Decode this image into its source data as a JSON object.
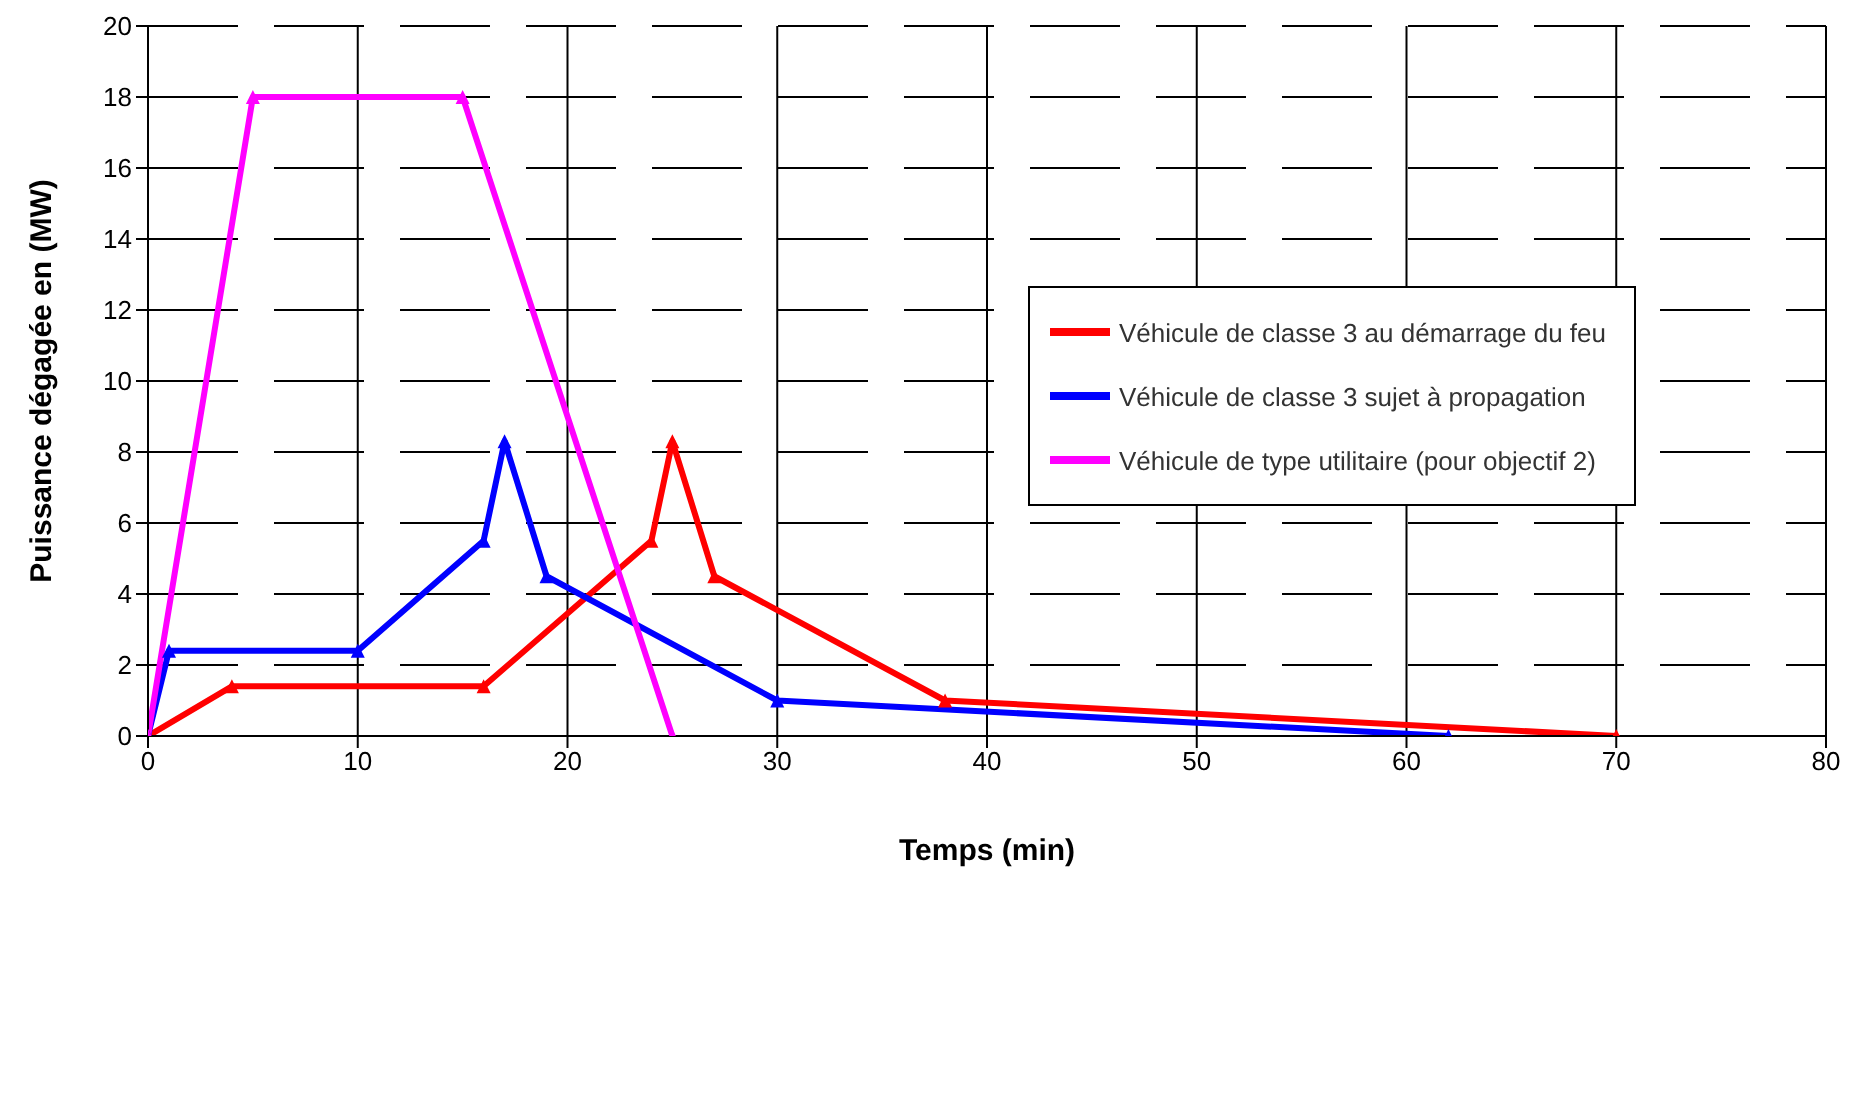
{
  "chart_data": {
    "type": "line",
    "xlabel": "Temps (min)",
    "ylabel": "Puissance dégagée en (MW)",
    "series": [
      {
        "name": "Véhicule de classe 3 au démarrage du feu",
        "color": "#ff0000",
        "x": [
          0,
          4,
          16,
          24,
          25,
          27,
          38,
          70
        ],
        "values": [
          0,
          1.4,
          1.4,
          5.5,
          8.3,
          4.5,
          1,
          0
        ]
      },
      {
        "name": "Véhicule de classe 3 sujet à propagation",
        "color": "#0000ff",
        "x": [
          0,
          1,
          10,
          16,
          17,
          19,
          30,
          62
        ],
        "values": [
          0,
          2.4,
          2.4,
          5.5,
          8.3,
          4.5,
          1,
          0
        ]
      },
      {
        "name": "Véhicule de type utilitaire (pour objectif 2)",
        "color": "#ff00ff",
        "x": [
          0,
          5,
          15,
          25
        ],
        "values": [
          0,
          18,
          18,
          0
        ]
      }
    ],
    "xlim": [
      0,
      80
    ],
    "xticks": [
      0,
      10,
      20,
      30,
      40,
      50,
      60,
      70,
      80
    ],
    "ylim": [
      0,
      20
    ],
    "yticks": [
      0,
      2,
      4,
      6,
      8,
      10,
      12,
      14,
      16,
      18,
      20
    ],
    "grid": true,
    "legend": "right",
    "marker": "triangle",
    "line_style": "solid"
  }
}
